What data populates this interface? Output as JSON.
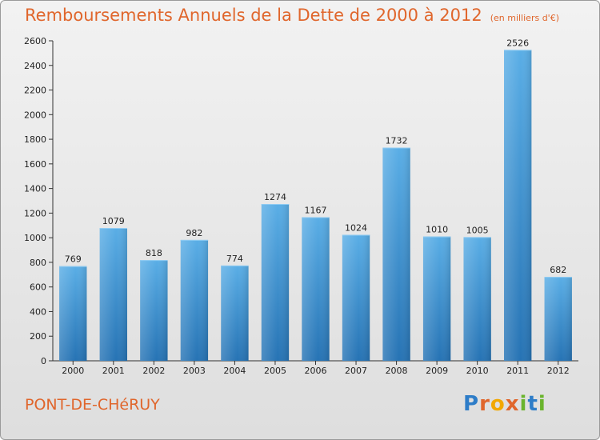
{
  "chart_data": {
    "type": "bar",
    "title": "Remboursements Annuels de la Dette de 2000 à 2012",
    "subtitle": "(en milliers d'€)",
    "categories": [
      "2000",
      "2001",
      "2002",
      "2003",
      "2004",
      "2005",
      "2006",
      "2007",
      "2008",
      "2009",
      "2010",
      "2011",
      "2012"
    ],
    "values": [
      769,
      1079,
      818,
      982,
      774,
      1274,
      1167,
      1024,
      1732,
      1010,
      1005,
      2526,
      682
    ],
    "ylim": [
      0,
      2600
    ],
    "yticks": [
      0,
      200,
      400,
      600,
      800,
      1000,
      1200,
      1400,
      1600,
      1800,
      2000,
      2200,
      2400,
      2600
    ],
    "grid": false,
    "colors": {
      "bar_top": "#5aaee6",
      "bar_bottom": "#2673b4",
      "title": "#e0662c"
    }
  },
  "footer": {
    "commune": "PONT-DE-CHéRUY",
    "logo_letters": [
      "P",
      "r",
      "o",
      "x",
      "i",
      "t",
      "i"
    ],
    "logo_colors": [
      "#2e7dc8",
      "#e0662c",
      "#f2a800",
      "#e0662c",
      "#6ab42d",
      "#2e7dc8",
      "#6ab42d"
    ]
  }
}
